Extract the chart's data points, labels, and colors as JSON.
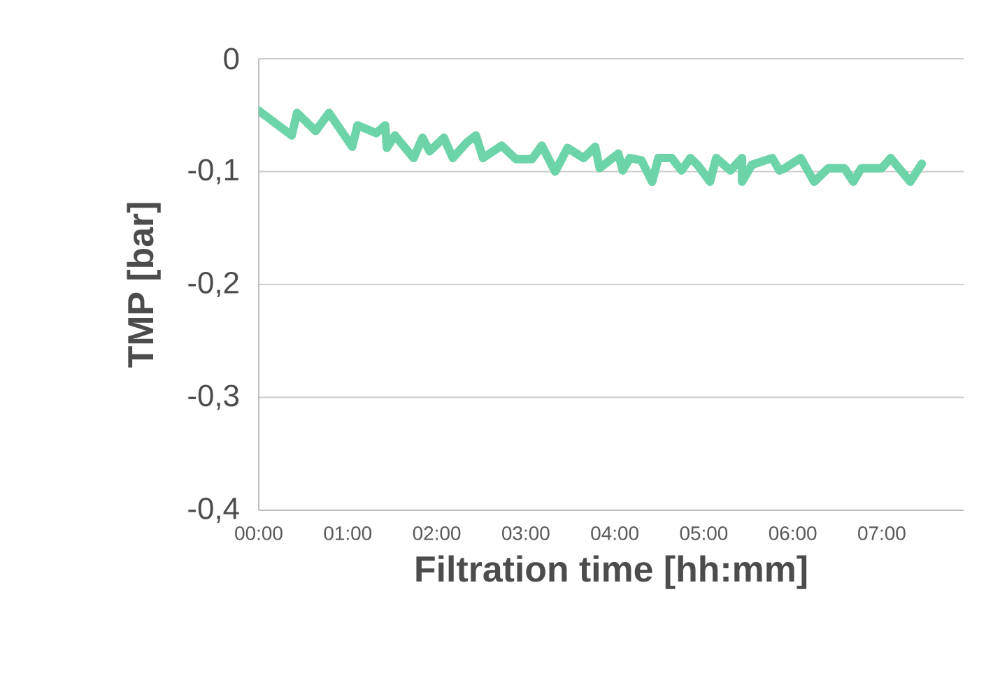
{
  "chart_data": {
    "type": "line",
    "xlabel": "Filtration time [hh:mm]",
    "ylabel": "TMP [bar]",
    "xlim": [
      0,
      7.92
    ],
    "xticks": [
      {
        "value": 0,
        "label": "00:00"
      },
      {
        "value": 1,
        "label": "01:00"
      },
      {
        "value": 2,
        "label": "02:00"
      },
      {
        "value": 3,
        "label": "03:00"
      },
      {
        "value": 4,
        "label": "04:00"
      },
      {
        "value": 5,
        "label": "05:00"
      },
      {
        "value": 6,
        "label": "06:00"
      },
      {
        "value": 7,
        "label": "07:00"
      }
    ],
    "ylim": [
      -0.4,
      0
    ],
    "yticks": [
      {
        "value": -0.4,
        "label": "-0,4"
      },
      {
        "value": -0.3,
        "label": "-0,3"
      },
      {
        "value": -0.2,
        "label": "-0,2"
      },
      {
        "value": -0.1,
        "label": "-0,1"
      },
      0
    ],
    "grid": "y",
    "legend": false,
    "marker": "none",
    "line_style": "solid",
    "series": [
      {
        "color": "#6dd3a9",
        "x": [
          0,
          0.37,
          0.43,
          0.64,
          0.79,
          1.05,
          1.11,
          1.32,
          1.42,
          1.44,
          1.53,
          1.74,
          1.84,
          1.92,
          2.08,
          2.18,
          2.34,
          2.44,
          2.52,
          2.73,
          2.89,
          3.07,
          3.18,
          3.33,
          3.47,
          3.65,
          3.78,
          3.83,
          4.04,
          4.09,
          4.17,
          4.3,
          4.42,
          4.49,
          4.64,
          4.75,
          4.85,
          4.93,
          5.07,
          5.14,
          5.3,
          5.43,
          5.43,
          5.54,
          5.77,
          5.85,
          5.91,
          6.09,
          6.24,
          6.4,
          6.58,
          6.68,
          6.77,
          7.0,
          7.1,
          7.32,
          7.45
        ],
        "values": [
          -0.046,
          -0.068,
          -0.048,
          -0.064,
          -0.048,
          -0.078,
          -0.059,
          -0.066,
          -0.059,
          -0.079,
          -0.068,
          -0.088,
          -0.07,
          -0.082,
          -0.07,
          -0.088,
          -0.074,
          -0.068,
          -0.088,
          -0.077,
          -0.089,
          -0.089,
          -0.077,
          -0.1,
          -0.079,
          -0.088,
          -0.078,
          -0.097,
          -0.084,
          -0.099,
          -0.088,
          -0.09,
          -0.109,
          -0.088,
          -0.088,
          -0.099,
          -0.088,
          -0.094,
          -0.109,
          -0.088,
          -0.099,
          -0.088,
          -0.109,
          -0.094,
          -0.088,
          -0.099,
          -0.097,
          -0.088,
          -0.109,
          -0.097,
          -0.097,
          -0.109,
          -0.097,
          -0.097,
          -0.088,
          -0.109,
          -0.093
        ]
      }
    ]
  }
}
